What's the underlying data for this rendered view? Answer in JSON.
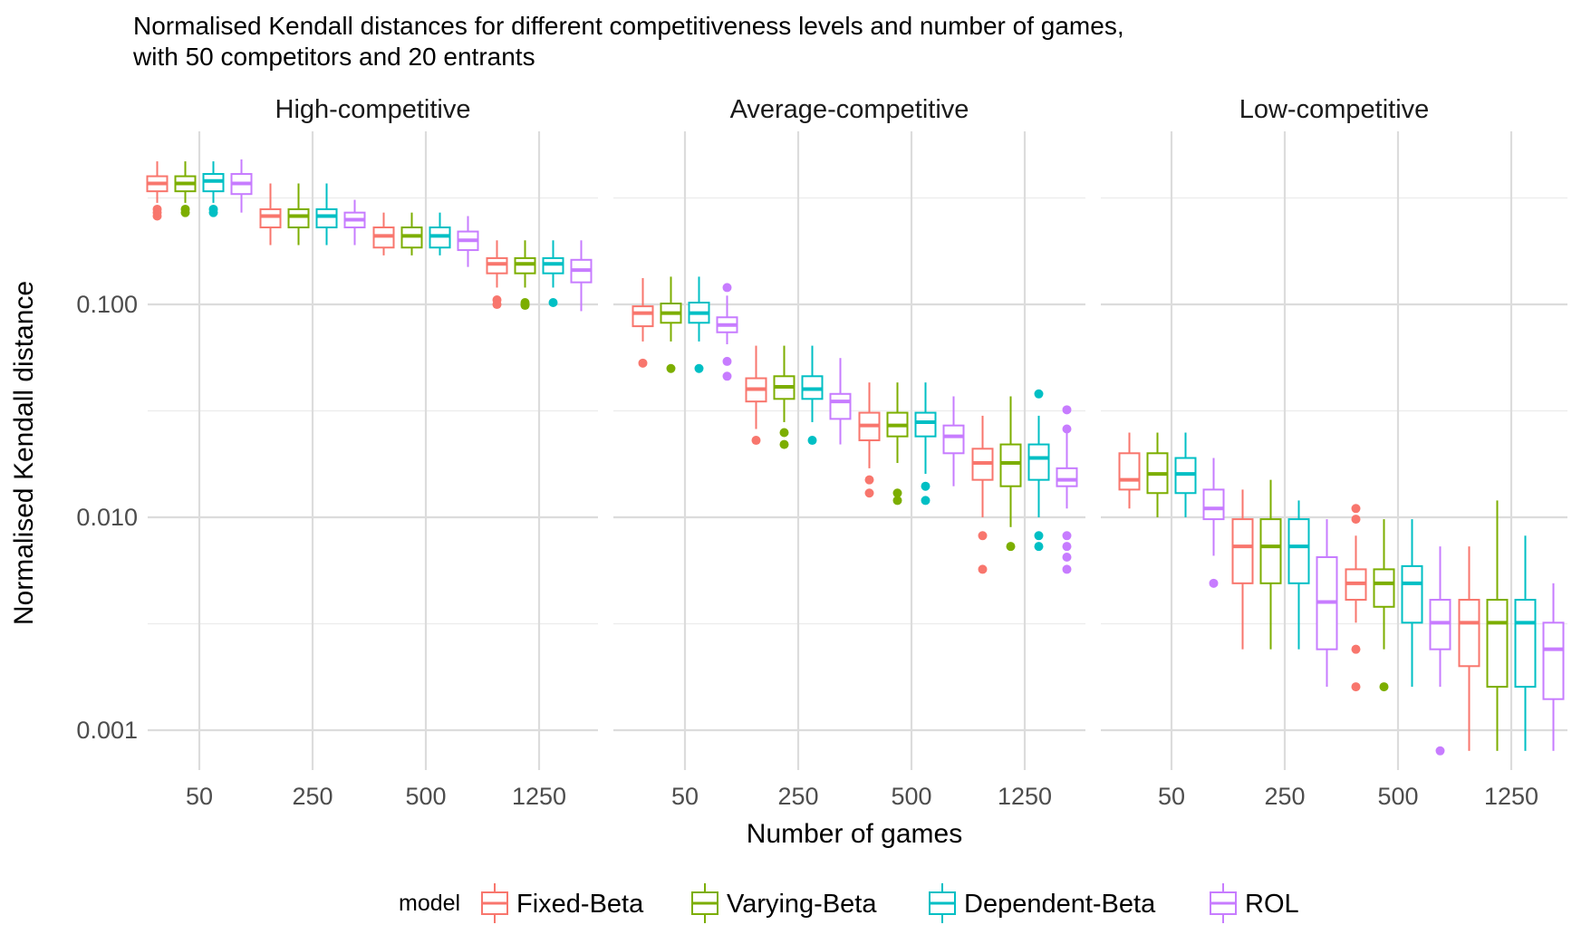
{
  "chart_data": {
    "type": "boxplot",
    "title": "Normalised Kendall distances for different competitiveness levels and number of games,",
    "subtitle": "with 50 competitors and 20 entrants",
    "xlabel": "Number of games",
    "ylabel": "Normalised Kendall distance",
    "y_scale": "log10",
    "ylim": [
      0.00065,
      0.65
    ],
    "y_ticks": [
      0.001,
      0.01,
      0.1
    ],
    "y_tick_labels": [
      "0.001",
      "0.010",
      "0.100"
    ],
    "grid": true,
    "legend_position": "bottom",
    "legend_title": "model",
    "categories": [
      "50",
      "250",
      "500",
      "1250"
    ],
    "series": [
      {
        "name": "Fixed-Beta",
        "color": "#F8766D"
      },
      {
        "name": "Varying-Beta",
        "color": "#7CAE00"
      },
      {
        "name": "Dependent-Beta",
        "color": "#00BFC4"
      },
      {
        "name": "ROL",
        "color": "#C77CFF"
      }
    ],
    "panels": [
      {
        "label": "High-competitive",
        "boxes": [
          [
            {
              "lw": 0.3,
              "q1": 0.34,
              "med": 0.37,
              "q3": 0.4,
              "uw": 0.47,
              "out": [
                0.26,
                0.27,
                0.28
              ]
            },
            {
              "lw": 0.3,
              "q1": 0.34,
              "med": 0.37,
              "q3": 0.4,
              "uw": 0.47,
              "out": [
                0.27,
                0.28
              ]
            },
            {
              "lw": 0.3,
              "q1": 0.34,
              "med": 0.38,
              "q3": 0.41,
              "uw": 0.47,
              "out": [
                0.27,
                0.28
              ]
            },
            {
              "lw": 0.27,
              "q1": 0.33,
              "med": 0.37,
              "q3": 0.41,
              "uw": 0.48,
              "out": []
            }
          ],
          [
            {
              "lw": 0.19,
              "q1": 0.23,
              "med": 0.26,
              "q3": 0.28,
              "uw": 0.37,
              "out": []
            },
            {
              "lw": 0.19,
              "q1": 0.23,
              "med": 0.26,
              "q3": 0.28,
              "uw": 0.37,
              "out": []
            },
            {
              "lw": 0.19,
              "q1": 0.23,
              "med": 0.26,
              "q3": 0.28,
              "uw": 0.37,
              "out": []
            },
            {
              "lw": 0.19,
              "q1": 0.23,
              "med": 0.25,
              "q3": 0.27,
              "uw": 0.31,
              "out": []
            }
          ],
          [
            {
              "lw": 0.17,
              "q1": 0.185,
              "med": 0.21,
              "q3": 0.23,
              "uw": 0.27,
              "out": []
            },
            {
              "lw": 0.17,
              "q1": 0.185,
              "med": 0.21,
              "q3": 0.23,
              "uw": 0.27,
              "out": []
            },
            {
              "lw": 0.17,
              "q1": 0.185,
              "med": 0.21,
              "q3": 0.23,
              "uw": 0.27,
              "out": []
            },
            {
              "lw": 0.15,
              "q1": 0.18,
              "med": 0.2,
              "q3": 0.22,
              "uw": 0.26,
              "out": []
            }
          ],
          [
            {
              "lw": 0.12,
              "q1": 0.14,
              "med": 0.155,
              "q3": 0.165,
              "uw": 0.2,
              "out": [
                0.1,
                0.105
              ]
            },
            {
              "lw": 0.12,
              "q1": 0.14,
              "med": 0.155,
              "q3": 0.165,
              "uw": 0.2,
              "out": [
                0.099,
                0.1,
                0.102
              ]
            },
            {
              "lw": 0.12,
              "q1": 0.14,
              "med": 0.155,
              "q3": 0.165,
              "uw": 0.2,
              "out": [
                0.102
              ]
            },
            {
              "lw": 0.093,
              "q1": 0.127,
              "med": 0.145,
              "q3": 0.162,
              "uw": 0.2,
              "out": []
            }
          ]
        ]
      },
      {
        "label": "Average-competitive",
        "boxes": [
          [
            {
              "lw": 0.067,
              "q1": 0.079,
              "med": 0.091,
              "q3": 0.098,
              "uw": 0.133,
              "out": [
                0.053
              ]
            },
            {
              "lw": 0.067,
              "q1": 0.082,
              "med": 0.091,
              "q3": 0.101,
              "uw": 0.135,
              "out": [
                0.05
              ]
            },
            {
              "lw": 0.067,
              "q1": 0.082,
              "med": 0.091,
              "q3": 0.102,
              "uw": 0.135,
              "out": [
                0.05
              ]
            },
            {
              "lw": 0.065,
              "q1": 0.074,
              "med": 0.08,
              "q3": 0.087,
              "uw": 0.11,
              "out": [
                0.046,
                0.054,
                0.12
              ]
            }
          ],
          [
            {
              "lw": 0.026,
              "q1": 0.035,
              "med": 0.04,
              "q3": 0.045,
              "uw": 0.064,
              "out": [
                0.023
              ]
            },
            {
              "lw": 0.028,
              "q1": 0.036,
              "med": 0.041,
              "q3": 0.046,
              "uw": 0.064,
              "out": [
                0.022,
                0.025
              ]
            },
            {
              "lw": 0.028,
              "q1": 0.036,
              "med": 0.04,
              "q3": 0.046,
              "uw": 0.064,
              "out": [
                0.023
              ]
            },
            {
              "lw": 0.022,
              "q1": 0.029,
              "med": 0.035,
              "q3": 0.038,
              "uw": 0.056,
              "out": []
            }
          ],
          [
            {
              "lw": 0.017,
              "q1": 0.023,
              "med": 0.027,
              "q3": 0.031,
              "uw": 0.043,
              "out": [
                0.013,
                0.015
              ]
            },
            {
              "lw": 0.018,
              "q1": 0.024,
              "med": 0.027,
              "q3": 0.031,
              "uw": 0.043,
              "out": [
                0.012,
                0.013
              ]
            },
            {
              "lw": 0.016,
              "q1": 0.024,
              "med": 0.028,
              "q3": 0.031,
              "uw": 0.043,
              "out": [
                0.012,
                0.014
              ]
            },
            {
              "lw": 0.014,
              "q1": 0.02,
              "med": 0.024,
              "q3": 0.027,
              "uw": 0.037,
              "out": []
            }
          ],
          [
            {
              "lw": 0.01,
              "q1": 0.015,
              "med": 0.018,
              "q3": 0.021,
              "uw": 0.03,
              "out": [
                0.0057,
                0.0082
              ]
            },
            {
              "lw": 0.009,
              "q1": 0.014,
              "med": 0.018,
              "q3": 0.022,
              "uw": 0.037,
              "out": [
                0.0073
              ]
            },
            {
              "lw": 0.01,
              "q1": 0.015,
              "med": 0.019,
              "q3": 0.022,
              "uw": 0.03,
              "out": [
                0.0073,
                0.0082,
                0.038
              ]
            },
            {
              "lw": 0.011,
              "q1": 0.014,
              "med": 0.015,
              "q3": 0.017,
              "uw": 0.025,
              "out": [
                0.0057,
                0.0065,
                0.0073,
                0.0082,
                0.026,
                0.032
              ]
            }
          ]
        ]
      },
      {
        "label": "Low-competitive",
        "boxes": [
          [
            {
              "lw": 0.011,
              "q1": 0.0135,
              "med": 0.015,
              "q3": 0.02,
              "uw": 0.025,
              "out": []
            },
            {
              "lw": 0.01,
              "q1": 0.013,
              "med": 0.016,
              "q3": 0.02,
              "uw": 0.025,
              "out": []
            },
            {
              "lw": 0.01,
              "q1": 0.013,
              "med": 0.016,
              "q3": 0.019,
              "uw": 0.025,
              "out": []
            },
            {
              "lw": 0.0066,
              "q1": 0.0098,
              "med": 0.011,
              "q3": 0.0135,
              "uw": 0.019,
              "out": [
                0.0049
              ]
            }
          ],
          [
            {
              "lw": 0.0024,
              "q1": 0.0049,
              "med": 0.0073,
              "q3": 0.0098,
              "uw": 0.0135,
              "out": []
            },
            {
              "lw": 0.0024,
              "q1": 0.0049,
              "med": 0.0073,
              "q3": 0.0098,
              "uw": 0.015,
              "out": []
            },
            {
              "lw": 0.0024,
              "q1": 0.0049,
              "med": 0.0073,
              "q3": 0.0098,
              "uw": 0.012,
              "out": []
            },
            {
              "lw": 0.0016,
              "q1": 0.0024,
              "med": 0.004,
              "q3": 0.0065,
              "uw": 0.0098,
              "out": []
            }
          ],
          [
            {
              "lw": 0.0032,
              "q1": 0.0041,
              "med": 0.0049,
              "q3": 0.0057,
              "uw": 0.0082,
              "out": [
                0.0016,
                0.0024,
                0.0098,
                0.011
              ]
            },
            {
              "lw": 0.0024,
              "q1": 0.0038,
              "med": 0.0049,
              "q3": 0.0057,
              "uw": 0.0098,
              "out": [
                0.0016
              ]
            },
            {
              "lw": 0.0016,
              "q1": 0.0032,
              "med": 0.0049,
              "q3": 0.0059,
              "uw": 0.0098,
              "out": []
            },
            {
              "lw": 0.0016,
              "q1": 0.0024,
              "med": 0.0032,
              "q3": 0.0041,
              "uw": 0.0073,
              "out": [
                0.0008
              ]
            }
          ],
          [
            {
              "lw": 0.0008,
              "q1": 0.002,
              "med": 0.0032,
              "q3": 0.0041,
              "uw": 0.0073,
              "out": []
            },
            {
              "lw": 0.0008,
              "q1": 0.0016,
              "med": 0.0032,
              "q3": 0.0041,
              "uw": 0.012,
              "out": []
            },
            {
              "lw": 0.0008,
              "q1": 0.0016,
              "med": 0.0032,
              "q3": 0.0041,
              "uw": 0.0082,
              "out": []
            },
            {
              "lw": 0.0008,
              "q1": 0.0014,
              "med": 0.0024,
              "q3": 0.0032,
              "uw": 0.0049,
              "out": []
            }
          ]
        ]
      }
    ]
  }
}
